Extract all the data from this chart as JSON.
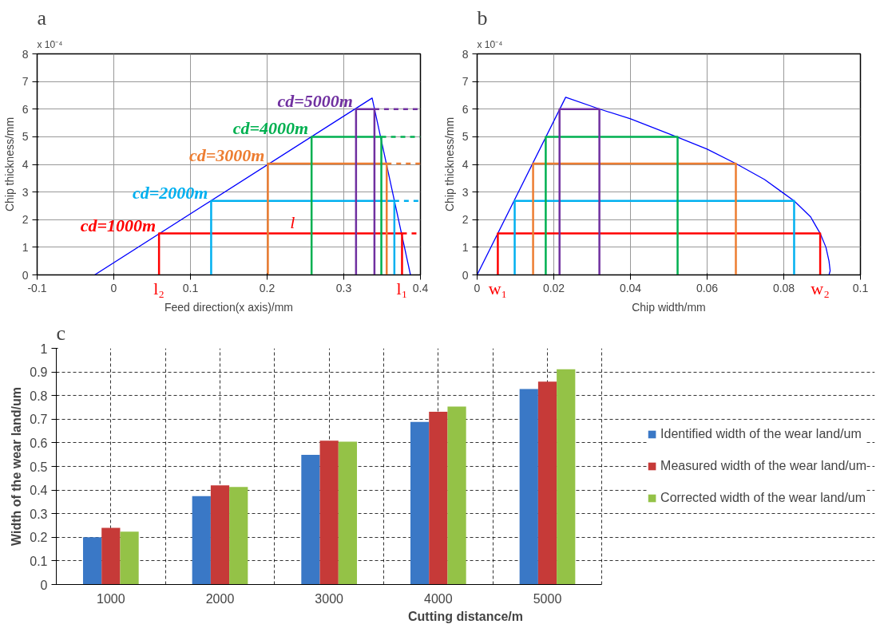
{
  "chart_data": [
    {
      "type": "line",
      "title": "a",
      "xlabel": "Feed direction(x axis)/mm",
      "ylabel": "Chip thickness/mm",
      "xlim": [
        -0.1,
        0.4
      ],
      "xticks": [
        -0.1,
        0,
        0.1,
        0.2,
        0.3,
        0.4
      ],
      "ylim": [
        0,
        8
      ],
      "yticks": [
        0,
        1,
        2,
        3,
        4,
        5,
        6,
        7,
        8
      ],
      "grid": true,
      "annotations": [
        "x 10⁻⁴",
        {
          "text": "l",
          "x": 0.23,
          "y": 1.5
        },
        "l₂",
        "l₁"
      ],
      "series": [
        {
          "color": "#0000ff",
          "x": [
            -0.025,
            0.337,
            0.387
          ],
          "values": [
            0,
            6.4,
            0
          ]
        },
        {
          "name": "cd=1000m",
          "color": "#ff0000",
          "x": [
            0.059,
            0.059,
            0.376,
            0.376
          ],
          "values": [
            0,
            1.5,
            1.5,
            0
          ]
        },
        {
          "name": "cd=2000m",
          "color": "#00b0f0",
          "x": [
            0.127,
            0.127,
            0.366,
            0.366
          ],
          "values": [
            0,
            2.68,
            2.68,
            0
          ]
        },
        {
          "name": "cd=3000m",
          "color": "#ed7d31",
          "x": [
            0.201,
            0.201,
            0.356,
            0.356
          ],
          "values": [
            0,
            4.03,
            4.03,
            0
          ]
        },
        {
          "name": "cd=4000m",
          "color": "#00b050",
          "x": [
            0.258,
            0.258,
            0.349,
            0.349
          ],
          "values": [
            0,
            5.0,
            5.0,
            0
          ]
        },
        {
          "name": "cd=5000m",
          "color": "#7030a0",
          "x": [
            0.316,
            0.316,
            0.34,
            0.34
          ],
          "values": [
            0,
            6.0,
            6.0,
            0
          ]
        },
        {
          "color": "#ff0000",
          "line_style": "dashed",
          "x": [
            0.376,
            0.4
          ],
          "values": [
            1.5,
            1.5
          ]
        },
        {
          "color": "#00b0f0",
          "line_style": "dashed",
          "x": [
            0.366,
            0.4
          ],
          "values": [
            2.68,
            2.68
          ]
        },
        {
          "color": "#ed7d31",
          "line_style": "dashed",
          "x": [
            0.356,
            0.4
          ],
          "values": [
            4.03,
            4.03
          ]
        },
        {
          "color": "#00b050",
          "line_style": "dashed",
          "x": [
            0.349,
            0.4
          ],
          "values": [
            5.0,
            5.0
          ]
        },
        {
          "color": "#7030a0",
          "line_style": "dashed",
          "x": [
            0.34,
            0.4
          ],
          "values": [
            6.0,
            6.0
          ]
        }
      ]
    },
    {
      "type": "line",
      "title": "b",
      "xlabel": "Chip width/mm",
      "ylabel": "Chip thickness/mm",
      "xlim": [
        0,
        0.1
      ],
      "xticks": [
        0,
        0.02,
        0.04,
        0.06,
        0.08,
        0.1
      ],
      "ylim": [
        0,
        8
      ],
      "yticks": [
        0,
        1,
        2,
        3,
        4,
        5,
        6,
        7,
        8
      ],
      "grid": true,
      "annotations": [
        "x 10⁻⁴",
        "w₁",
        "w₂"
      ],
      "series": [
        {
          "color": "#0000ff",
          "x": [
            0,
            0.0231,
            0.032,
            0.04,
            0.052,
            0.06,
            0.0675,
            0.075,
            0.08,
            0.0827,
            0.087,
            0.0895,
            0.091,
            0.0918,
            0.0921,
            0.0918
          ],
          "values": [
            0,
            6.43,
            6.0,
            5.65,
            5.0,
            4.55,
            4.03,
            3.45,
            2.95,
            2.68,
            2.1,
            1.5,
            1.0,
            0.5,
            0.15,
            0
          ]
        },
        {
          "color": "#ff0000",
          "x": [
            0.0054,
            0.0054,
            0.0895,
            0.0895
          ],
          "values": [
            0,
            1.5,
            1.5,
            0
          ]
        },
        {
          "color": "#00b0f0",
          "x": [
            0.0098,
            0.0098,
            0.0827,
            0.0827
          ],
          "values": [
            0,
            2.68,
            2.68,
            0
          ]
        },
        {
          "color": "#ed7d31",
          "x": [
            0.0146,
            0.0146,
            0.0675,
            0.0675
          ],
          "values": [
            0,
            4.03,
            4.03,
            0
          ]
        },
        {
          "color": "#00b050",
          "x": [
            0.0179,
            0.0179,
            0.0523,
            0.0523
          ],
          "values": [
            0,
            5.0,
            5.0,
            0
          ]
        },
        {
          "color": "#7030a0",
          "x": [
            0.0215,
            0.0215,
            0.0319,
            0.0319
          ],
          "values": [
            0,
            6.0,
            6.0,
            0
          ]
        }
      ]
    },
    {
      "type": "bar",
      "title": "c",
      "xlabel": "Cutting distance/m",
      "ylabel": "Width of the wear land/um",
      "categories": [
        "1000",
        "2000",
        "3000",
        "4000",
        "5000"
      ],
      "ylim": [
        0,
        1
      ],
      "yticks": [
        0,
        0.1,
        0.2,
        0.3,
        0.4,
        0.5,
        0.6,
        0.7,
        0.8,
        0.9,
        1
      ],
      "grid": true,
      "legend": "right",
      "series": [
        {
          "name": "Identified width of the wear land/um",
          "color": "#3a78c6",
          "values": [
            0.2,
            0.374,
            0.549,
            0.688,
            0.828
          ]
        },
        {
          "name": "Measured width of the wear land/um",
          "color": "#c63a38",
          "values": [
            0.24,
            0.42,
            0.609,
            0.731,
            0.859
          ]
        },
        {
          "name": "Corrected width of the wear land/um",
          "color": "#94c247",
          "values": [
            0.224,
            0.413,
            0.605,
            0.753,
            0.911
          ]
        }
      ]
    }
  ]
}
